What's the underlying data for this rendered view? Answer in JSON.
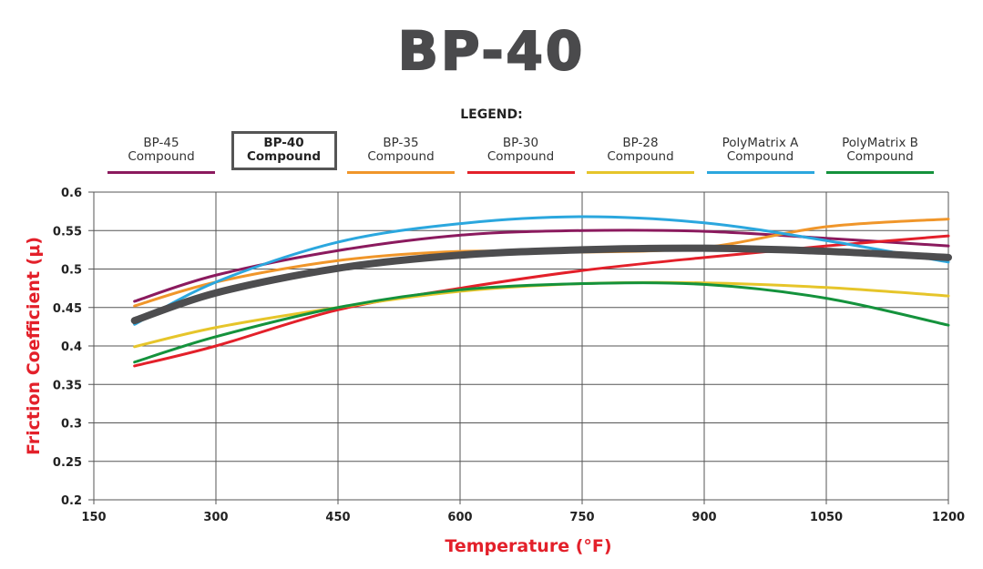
{
  "chart_data": {
    "type": "line",
    "title": "BP-40",
    "legend_title": "LEGEND:",
    "xlabel": "Temperature (°F)",
    "ylabel": "Friction Coefficient (μ)",
    "xlim": [
      150,
      1200
    ],
    "ylim": [
      0.2,
      0.6
    ],
    "xticks": [
      "150",
      "300",
      "450",
      "600",
      "750",
      "900",
      "1050",
      "1200"
    ],
    "yticks": [
      "0.6",
      "0.55",
      "0.5",
      "0.45",
      "0.4",
      "0.35",
      "0.3",
      "0.25",
      "0.2"
    ],
    "grid": true,
    "legend_placement": "top",
    "x": [
      200,
      300,
      450,
      600,
      750,
      900,
      1050,
      1200
    ],
    "series": [
      {
        "name": "BP-45",
        "sub": "Compound",
        "color": "#8b1a5e",
        "values": [
          0.458,
          0.492,
          0.524,
          0.544,
          0.55,
          0.549,
          0.54,
          0.53
        ]
      },
      {
        "name": "BP-40",
        "sub": "Compound",
        "color": "#4d4d4f",
        "highlight": true,
        "values": [
          0.433,
          0.469,
          0.501,
          0.518,
          0.525,
          0.527,
          0.523,
          0.515
        ]
      },
      {
        "name": "BP-35",
        "sub": "Compound",
        "color": "#f0962a",
        "values": [
          0.452,
          0.483,
          0.511,
          0.523,
          0.522,
          0.528,
          0.555,
          0.565
        ]
      },
      {
        "name": "BP-30",
        "sub": "Compound",
        "color": "#e3202a",
        "values": [
          0.374,
          0.4,
          0.447,
          0.475,
          0.498,
          0.515,
          0.53,
          0.543
        ]
      },
      {
        "name": "BP-28",
        "sub": "Compound",
        "color": "#e6c52a",
        "values": [
          0.399,
          0.424,
          0.45,
          0.471,
          0.481,
          0.482,
          0.476,
          0.465
        ]
      },
      {
        "name": "PolyMatrix A",
        "sub": "Compound",
        "color": "#2ba7de",
        "values": [
          0.428,
          0.483,
          0.535,
          0.559,
          0.568,
          0.56,
          0.537,
          0.509
        ]
      },
      {
        "name": "PolyMatrix B",
        "sub": "Compound",
        "color": "#14923c",
        "values": [
          0.379,
          0.412,
          0.45,
          0.473,
          0.481,
          0.48,
          0.462,
          0.427
        ]
      }
    ]
  }
}
